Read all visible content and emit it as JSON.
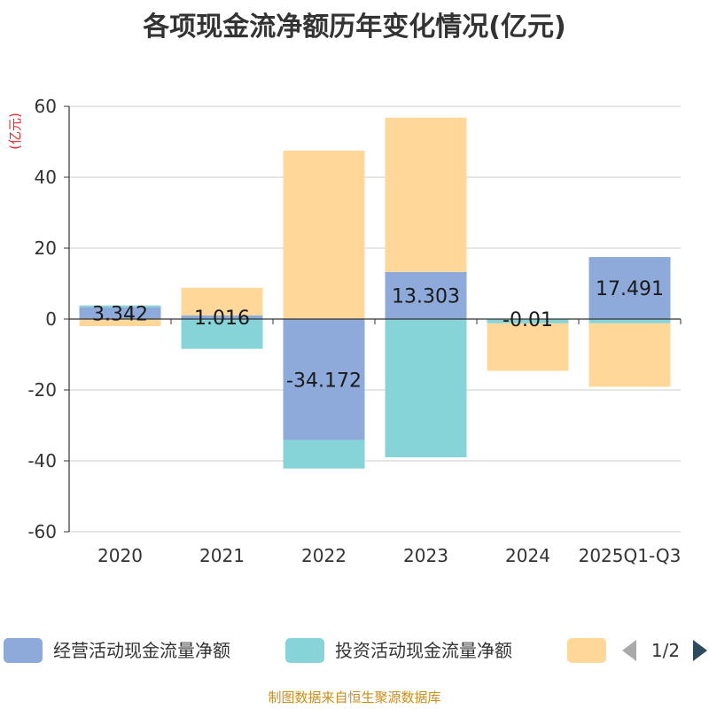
{
  "chart_data": {
    "type": "bar",
    "stacked": true,
    "title": "各项现金流净额历年变化情况(亿元)",
    "unit_label": "(亿元)",
    "categories": [
      "2020",
      "2021",
      "2022",
      "2023",
      "2024",
      "2025Q1-Q3"
    ],
    "ylim": [
      -60,
      60
    ],
    "yticks": [
      60,
      40,
      20,
      0,
      -20,
      -40,
      -60
    ],
    "grid": true,
    "legend_position": "bottom",
    "series": [
      {
        "name": "经营活动现金流量净额",
        "color": "#8eaadb",
        "values": [
          3.342,
          1.016,
          -34.172,
          13.303,
          -0.01,
          17.491
        ],
        "labels": [
          "3.342",
          "1.016",
          "-34.172",
          "13.303",
          "-0.01",
          "17.491"
        ]
      },
      {
        "name": "投资活动现金流量净额",
        "color": "#87d4d8",
        "values": [
          0.5,
          -8.4,
          -8.0,
          -39.0,
          -1.2,
          -1.2
        ]
      },
      {
        "name": "",
        "color": "#ffd899",
        "values": [
          -2.0,
          7.8,
          47.5,
          43.5,
          -13.4,
          -17.9
        ]
      }
    ]
  },
  "legend": {
    "page_indicator": "1/2"
  },
  "source": "制图数据来自恒生聚源数据库"
}
